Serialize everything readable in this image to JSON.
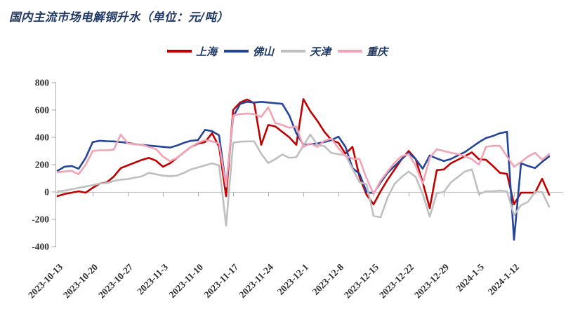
{
  "chart_data": {
    "type": "line",
    "title": "国内主流市场电解铜升水（单位：元/吨）",
    "unit": "元/吨",
    "grid": false,
    "legend_position": "top",
    "ylim": [
      -400,
      800
    ],
    "ytick_step": 200,
    "yticks": [
      800,
      600,
      400,
      200,
      0,
      -200,
      -400
    ],
    "x_tick_labels": [
      "2023-10-13",
      "2023-10-20",
      "2023-10-27",
      "2023-11-3",
      "2023-11-10",
      "2023-11-17",
      "2023-11-24",
      "2023-12-1",
      "2023-12-8",
      "2023-12-15",
      "2023-12-22",
      "2023-12-29",
      "2024-1-5",
      "2024-1-12"
    ],
    "dates": [
      "2023-10-13",
      "2023-10-16",
      "2023-10-17",
      "2023-10-18",
      "2023-10-19",
      "2023-10-20",
      "2023-10-23",
      "2023-10-24",
      "2023-10-25",
      "2023-10-26",
      "2023-10-27",
      "2023-10-30",
      "2023-10-31",
      "2023-11-1",
      "2023-11-2",
      "2023-11-3",
      "2023-11-6",
      "2023-11-7",
      "2023-11-8",
      "2023-11-9",
      "2023-11-10",
      "2023-11-13",
      "2023-11-14",
      "2023-11-15",
      "2023-11-16",
      "2023-11-17",
      "2023-11-20",
      "2023-11-21",
      "2023-11-22",
      "2023-11-23",
      "2023-11-24",
      "2023-11-27",
      "2023-11-28",
      "2023-11-29",
      "2023-11-30",
      "2023-12-1",
      "2023-12-4",
      "2023-12-5",
      "2023-12-6",
      "2023-12-7",
      "2023-12-8",
      "2023-12-11",
      "2023-12-12",
      "2023-12-13",
      "2023-12-14",
      "2023-12-15",
      "2023-12-18",
      "2023-12-19",
      "2023-12-20",
      "2023-12-21",
      "2023-12-22",
      "2023-12-25",
      "2023-12-26",
      "2023-12-27",
      "2023-12-28",
      "2023-12-29",
      "2024-1-1",
      "2024-1-2",
      "2024-1-3",
      "2024-1-4",
      "2024-1-5",
      "2024-1-8",
      "2024-1-9",
      "2024-1-10",
      "2024-1-11",
      "2024-1-12",
      "2024-1-15",
      "2024-1-16",
      "2024-1-17",
      "2024-1-18",
      "2024-1-19"
    ],
    "series": [
      {
        "key": "shanghai",
        "name": "上海",
        "color": "#C00000",
        "values": [
          -30,
          -15,
          -5,
          5,
          -5,
          30,
          62,
          70,
          113,
          175,
          195,
          215,
          235,
          250,
          230,
          185,
          210,
          250,
          290,
          330,
          355,
          365,
          430,
          330,
          -30,
          600,
          655,
          677,
          650,
          345,
          490,
          480,
          440,
          400,
          345,
          680,
          590,
          520,
          440,
          380,
          360,
          280,
          330,
          110,
          -20,
          -90,
          5,
          90,
          165,
          240,
          300,
          241,
          70,
          -118,
          160,
          165,
          210,
          236,
          262,
          290,
          240,
          236,
          190,
          140,
          133,
          -90,
          -5,
          -5,
          -5,
          97,
          -20
        ]
      },
      {
        "key": "foshan",
        "name": "佛山",
        "color": "#24459A",
        "values": [
          155,
          185,
          190,
          170,
          250,
          365,
          375,
          372,
          370,
          365,
          360,
          350,
          345,
          340,
          335,
          330,
          325,
          340,
          360,
          375,
          380,
          455,
          445,
          415,
          40,
          550,
          645,
          660,
          655,
          660,
          655,
          650,
          645,
          560,
          430,
          345,
          350,
          355,
          365,
          380,
          405,
          330,
          175,
          133,
          0,
          -10,
          70,
          140,
          190,
          240,
          287,
          240,
          170,
          267,
          245,
          226,
          241,
          267,
          292,
          328,
          364,
          395,
          410,
          430,
          440,
          -350,
          210,
          190,
          175,
          220,
          260
        ]
      },
      {
        "key": "tianjin",
        "name": "天津",
        "color": "#BFBFBF",
        "values": [
          5,
          10,
          20,
          30,
          40,
          50,
          62,
          65,
          80,
          90,
          95,
          105,
          115,
          140,
          130,
          120,
          115,
          120,
          140,
          165,
          180,
          195,
          210,
          195,
          -245,
          360,
          368,
          370,
          370,
          280,
          212,
          240,
          275,
          250,
          255,
          340,
          420,
          345,
          335,
          285,
          277,
          270,
          170,
          72,
          56,
          -175,
          -185,
          -40,
          60,
          110,
          150,
          110,
          -15,
          -180,
          -10,
          0,
          70,
          110,
          150,
          165,
          -15,
          5,
          5,
          10,
          5,
          -170,
          -97,
          -72,
          0,
          0,
          -108
        ]
      },
      {
        "key": "chongqing",
        "name": "重庆",
        "color": "#F2A3B5",
        "values": [
          145,
          150,
          155,
          130,
          200,
          300,
          305,
          305,
          310,
          420,
          355,
          350,
          345,
          330,
          315,
          260,
          225,
          250,
          290,
          330,
          360,
          380,
          370,
          355,
          40,
          560,
          570,
          575,
          570,
          550,
          620,
          505,
          490,
          470,
          480,
          330,
          355,
          330,
          375,
          390,
          320,
          262,
          245,
          240,
          100,
          -15,
          82,
          150,
          215,
          262,
          277,
          190,
          60,
          250,
          313,
          300,
          287,
          277,
          262,
          240,
          200,
          330,
          338,
          338,
          260,
          185,
          220,
          260,
          287,
          236,
          277
        ]
      }
    ]
  }
}
